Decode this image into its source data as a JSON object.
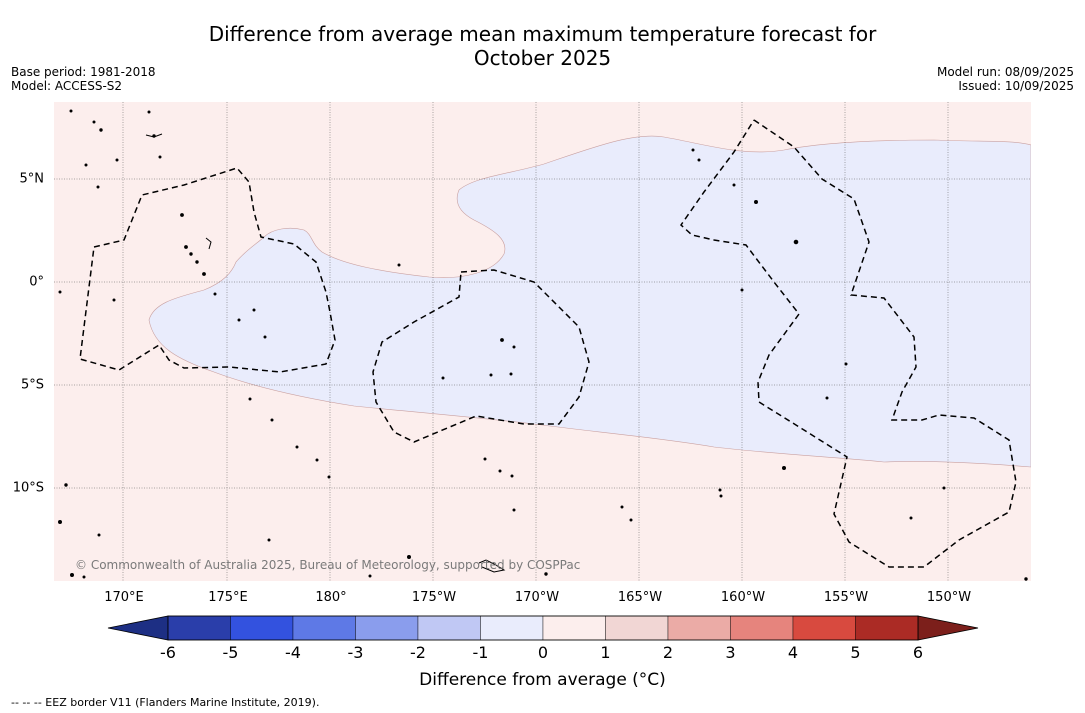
{
  "title_line1": "Difference from average mean maximum temperature forecast for",
  "title_line2": "October 2025",
  "base_period": "Base period: 1981-2018",
  "model": "Model: ACCESS-S2",
  "model_run": "Model run: 08/09/2025",
  "issued": "Issued: 10/09/2025",
  "copyright": "© Commonwealth of Australia 2025, Bureau of Meteorology, supported by COSPPac",
  "lon_labels": [
    "170°E",
    "175°E",
    "180°",
    "175°W",
    "170°W",
    "165°W",
    "160°W",
    "155°W",
    "150°W"
  ],
  "lat_labels": [
    "5°N",
    "0°",
    "5°S",
    "10°S"
  ],
  "colorbar": {
    "ticks": [
      "-6",
      "-5",
      "-4",
      "-3",
      "-2",
      "-1",
      "0",
      "1",
      "2",
      "3",
      "4",
      "5",
      "6"
    ],
    "colors": [
      "#2a3eaa",
      "#3352df",
      "#5e79e6",
      "#8a9ded",
      "#c0c8f4",
      "#e9ecfc",
      "#fceeed",
      "#f1d6d4",
      "#ebaba6",
      "#e6847d",
      "#d84a3f",
      "#ab2b25"
    ],
    "under_color": "#1d2f84",
    "over_color": "#7c1f1b",
    "label": "Difference from average (°C)"
  },
  "legend_note": "--  --  -- EEZ border V11 (Flanders Marine Institute, 2019).",
  "map_colors": {
    "warm_zone": "#fceeed",
    "cool_zone": "#e9ecfc"
  }
}
